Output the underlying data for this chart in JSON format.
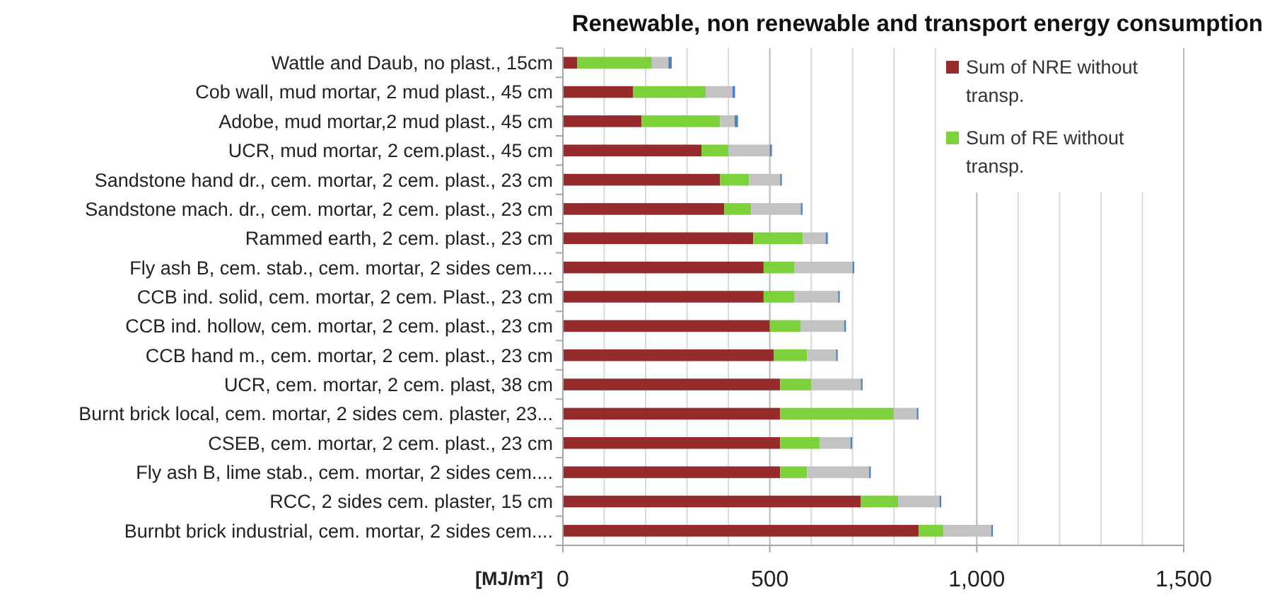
{
  "chart_data": {
    "type": "bar",
    "orientation": "horizontal",
    "stacked": true,
    "title": "Renewable, non renewable and transport energy consumption",
    "xlabel": "[MJ/m²]",
    "categories": [
      "Wattle and Daub, no plast., 15cm",
      "Cob wall, mud mortar, 2 mud plast., 45 cm",
      "Adobe, mud mortar,2 mud plast., 45 cm",
      "UCR, mud mortar, 2 cem.plast., 45 cm",
      "Sandstone hand dr., cem. mortar, 2 cem. plast., 23 cm",
      "Sandstone mach. dr., cem. mortar, 2 cem. plast., 23 cm",
      "Rammed earth, 2 cem. plast., 23 cm",
      "Fly ash B, cem. stab., cem. mortar, 2 sides cem....",
      "CCB ind. solid, cem. mortar, 2 cem. Plast., 23 cm",
      "CCB ind. hollow, cem. mortar, 2 cem. plast., 23 cm",
      "CCB hand m., cem. mortar, 2 cem. plast., 23 cm",
      "UCR, cem. mortar, 2 cem. plast, 38 cm",
      "Burnt brick local, cem. mortar, 2 sides cem. plaster, 23...",
      "CSEB, cem. mortar, 2 cem. plast., 23 cm",
      "Fly ash B, lime stab., cem. mortar, 2 sides cem....",
      "RCC, 2 sides cem. plaster, 15 cm",
      "Burnbt brick industrial, cem. mortar, 2 sides cem...."
    ],
    "series": [
      {
        "name": "Sum of NRE without transp.",
        "color": "#962b2b",
        "values": [
          35,
          170,
          190,
          335,
          380,
          390,
          460,
          485,
          485,
          500,
          510,
          525,
          525,
          525,
          525,
          720,
          860
        ]
      },
      {
        "name": "Sum of RE without transp.",
        "color": "#7dd23c",
        "values": [
          180,
          175,
          190,
          65,
          70,
          65,
          120,
          75,
          75,
          75,
          80,
          75,
          275,
          95,
          65,
          90,
          60
        ]
      },
      {
        "color": "#c3c3c3",
        "values": [
          40,
          65,
          35,
          100,
          75,
          120,
          55,
          140,
          105,
          105,
          70,
          120,
          55,
          75,
          150,
          100,
          115
        ]
      },
      {
        "color": "#4f81bd",
        "values": [
          8,
          6,
          8,
          5,
          4,
          4,
          5,
          4,
          4,
          4,
          4,
          4,
          4,
          4,
          4,
          4,
          4
        ]
      }
    ],
    "xlim": [
      0,
      1500
    ],
    "xticks": [
      0,
      {
        "value": 100,
        "label": null
      },
      {
        "value": 200,
        "label": null
      },
      {
        "value": 300,
        "label": null
      },
      {
        "value": 400,
        "label": null
      },
      500,
      {
        "value": 600,
        "label": null
      },
      {
        "value": 700,
        "label": null
      },
      {
        "value": 800,
        "label": null
      },
      {
        "value": 900,
        "label": null
      },
      {
        "value": 1000,
        "label": "1,000"
      },
      {
        "value": 1100,
        "label": null
      },
      {
        "value": 1200,
        "label": null
      },
      {
        "value": 1300,
        "label": null
      },
      {
        "value": 1400,
        "label": null
      },
      {
        "value": 1500,
        "label": "1,500"
      }
    ],
    "grid": "x",
    "legend": "top right"
  }
}
